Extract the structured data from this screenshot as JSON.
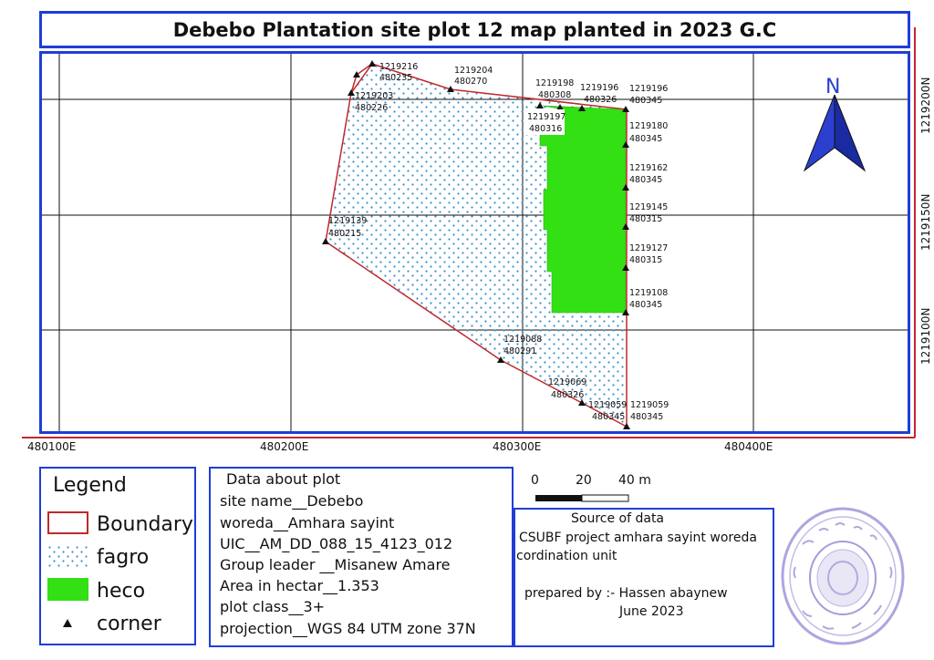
{
  "title": "Debebo Plantation site plot 12 map planted in 2023 G.C",
  "map": {
    "x_labels": [
      "480100E",
      "480200E",
      "480300E",
      "480400E"
    ],
    "y_labels": [
      "1219200N",
      "1219150N",
      "1219100N"
    ],
    "north_label": "N",
    "scale": {
      "labels": [
        "0",
        "20",
        "40 m"
      ]
    },
    "points": [
      {
        "label1": "1219216",
        "label2": "480235"
      },
      {
        "label1": "1219204",
        "label2": "480270"
      },
      {
        "label1": "1219203",
        "label2": "480226"
      },
      {
        "label1": "1219198",
        "label2": "480308"
      },
      {
        "label1": "1219196",
        "label2": "480326"
      },
      {
        "label1": "1219196",
        "label2": "480345"
      },
      {
        "label1": "1219197",
        "label2": "480316"
      },
      {
        "label1": "1219180",
        "label2": "480345"
      },
      {
        "label1": "1219162",
        "label2": "480345"
      },
      {
        "label1": "1219145",
        "label2": "480315"
      },
      {
        "label1": "1219139",
        "label2": "480215"
      },
      {
        "label1": "1219127",
        "label2": "480315"
      },
      {
        "label1": "1219108",
        "label2": "480345"
      },
      {
        "label1": "1219088",
        "label2": "480291"
      },
      {
        "label1": "1219069",
        "label2": "480326"
      },
      {
        "label1": "1219059",
        "label2": "480345"
      },
      {
        "label1": "1219059",
        "label2": "480345"
      }
    ],
    "colors": {
      "boundary": "#c0282d",
      "heco": "#33e014",
      "fagro_dot": "#3a8fc7",
      "frame": "#1f3ed6"
    }
  },
  "legend": {
    "title": "Legend",
    "items": [
      {
        "label": "Boundary"
      },
      {
        "label": "fagro"
      },
      {
        "label": "heco"
      },
      {
        "label": "corner"
      }
    ]
  },
  "plot_data": {
    "lines": [
      "Data about plot",
      "site name__Debebo",
      "woreda__Amhara sayint",
      "UIC__AM_DD_088_15_4123_012",
      "Group leader __Misanew Amare",
      "Area in hectar__1.353",
      "plot class__3+",
      "projection__WGS 84 UTM zone 37N"
    ]
  },
  "source": {
    "heading": "Source of data",
    "line1": "CSUBF project amhara sayint woreda",
    "line2": "cordination unit",
    "prepared": "prepared by :- Hassen abaynew",
    "date": "June 2023"
  }
}
